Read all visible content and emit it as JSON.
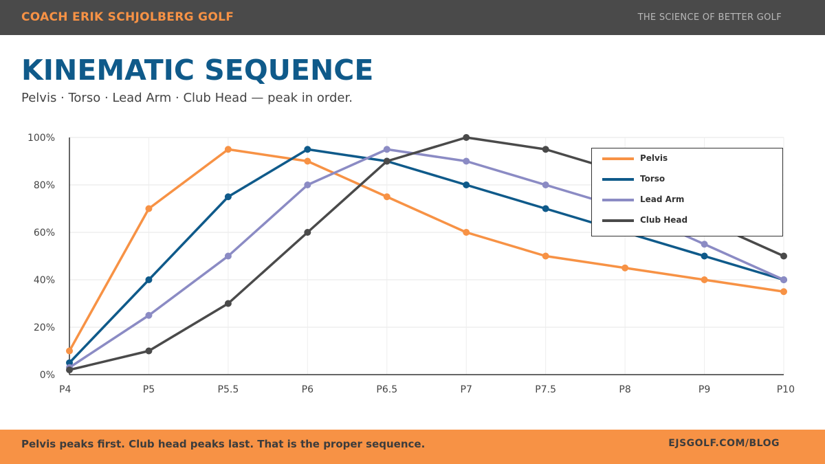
{
  "header": {
    "brand": "COACH ERIK SCHJOLBERG GOLF",
    "tagline": "THE SCIENCE OF BETTER GOLF"
  },
  "title": "KINEMATIC SEQUENCE",
  "subtitle": "Pelvis · Torso · Lead Arm · Club Head — peak in order.",
  "footer": {
    "message": "Pelvis peaks first. Club head peaks last. That is the proper sequence.",
    "link": "EJSGOLF.COM/BLOG"
  },
  "colors": {
    "accent": "#f79245",
    "brand_blue": "#0f5a8a",
    "dark": "#4a4a4a"
  },
  "chart_data": {
    "type": "line",
    "title": "",
    "xlabel": "",
    "ylabel": "",
    "categories": [
      "P4",
      "P5",
      "P5.5",
      "P6",
      "P6.5",
      "P7",
      "P7.5",
      "P8",
      "P9",
      "P10"
    ],
    "ylim": [
      0,
      100
    ],
    "y_ticks": [
      0,
      20,
      40,
      60,
      80,
      100
    ],
    "y_tick_labels": [
      "0%",
      "20%",
      "40%",
      "60%",
      "80%",
      "100%"
    ],
    "grid": true,
    "legend_position": "top-right",
    "series": [
      {
        "name": "Pelvis",
        "color": "#f79245",
        "values": [
          10,
          70,
          95,
          90,
          75,
          60,
          50,
          45,
          40,
          35
        ]
      },
      {
        "name": "Torso",
        "color": "#0f5a8a",
        "values": [
          5,
          40,
          75,
          95,
          90,
          80,
          70,
          60,
          50,
          40
        ]
      },
      {
        "name": "Lead Arm",
        "color": "#8b8bc4",
        "values": [
          3,
          25,
          50,
          80,
          95,
          90,
          80,
          70,
          55,
          40
        ]
      },
      {
        "name": "Club Head",
        "color": "#4a4a4a",
        "values": [
          2,
          10,
          30,
          60,
          90,
          100,
          95,
          85,
          65,
          50
        ]
      }
    ]
  }
}
